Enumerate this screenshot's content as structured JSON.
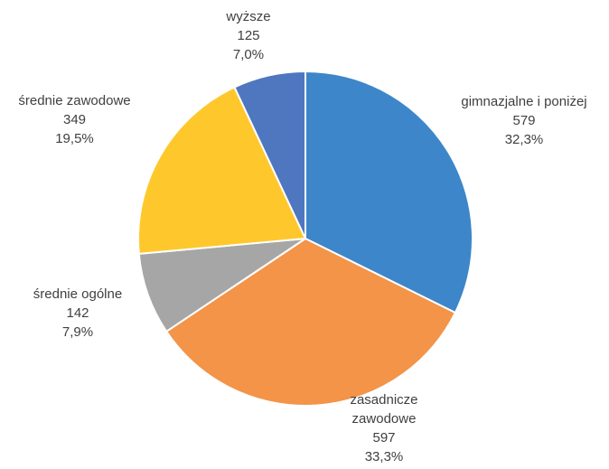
{
  "chart_data": {
    "type": "pie",
    "title": "",
    "slices": [
      {
        "label": "gimnazjalne i poniżej",
        "value": 579,
        "percent": "32,3%",
        "color": "#3d86c9"
      },
      {
        "label": "zasadnicze zawodowe",
        "value": 597,
        "percent": "33,3%",
        "color": "#f39448"
      },
      {
        "label": "średnie ogólne",
        "value": 142,
        "percent": "7,9%",
        "color": "#a6a6a6"
      },
      {
        "label": "średnie zawodowe",
        "value": 349,
        "percent": "19,5%",
        "color": "#fec82d"
      },
      {
        "label": "wyższe",
        "value": 125,
        "percent": "7,0%",
        "color": "#4f77c0"
      }
    ],
    "start_angle": "12 o'clock",
    "direction": "clockwise",
    "legend": "none",
    "label_position": "outside"
  }
}
